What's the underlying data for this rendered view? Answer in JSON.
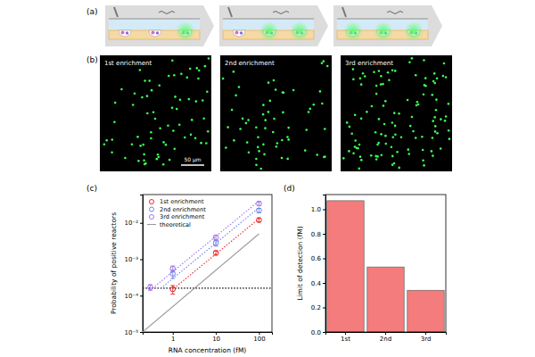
{
  "panels": {
    "a": {
      "panel_label": "(a)"
    },
    "b": {
      "panel_label": "(b)",
      "images": [
        {
          "title": "1st enrichment",
          "spots": 70
        },
        {
          "title": "2nd enrichment",
          "spots": 60
        },
        {
          "title": "3rd enrichment",
          "spots": 110
        }
      ],
      "scale_bar": "50 μm"
    }
  },
  "chart_data": [
    {
      "type": "scatter",
      "panel_label": "(c)",
      "x_label": "RNA concentration (fM)",
      "y_label": "Probability of positive reactors",
      "log": true,
      "xlim": [
        0.2,
        200
      ],
      "ylim": [
        1e-05,
        0.06
      ],
      "xticks": [
        1,
        10,
        100
      ],
      "yticks": [
        {
          "value": 1e-05,
          "label": "10⁻⁵"
        },
        {
          "value": 0.0001,
          "label": "10⁻⁴"
        },
        {
          "value": 0.001,
          "label": "10⁻³"
        },
        {
          "value": 0.01,
          "label": "10⁻²"
        }
      ],
      "legend": "top-left",
      "threshold": {
        "value": 0.00016,
        "color": "#000000",
        "line_style": "dotted"
      },
      "series": [
        {
          "name": "1st enrichment",
          "color": "#e8262a",
          "marker": "circle",
          "x": [
            1,
            10,
            100
          ],
          "values": [
            0.00015,
            0.0015,
            0.012
          ],
          "errors": [
            4e-05,
            0.0002,
            0.0015
          ],
          "fit": {
            "x": [
              1.07,
              100
            ],
            "values": [
              0.00016,
              0.013
            ],
            "line_style": "dotted"
          }
        },
        {
          "name": "2nd enrichment",
          "color": "#6a84e6",
          "marker": "circle",
          "x": [
            1,
            10,
            100
          ],
          "values": [
            0.0004,
            0.0028,
            0.022
          ],
          "errors": [
            0.0001,
            0.0005,
            0.003
          ],
          "fit": {
            "x": [
              0.53,
              100
            ],
            "values": [
              0.00016,
              0.026
            ],
            "line_style": "dotted"
          }
        },
        {
          "name": "3rd enrichment",
          "color": "#a274e6",
          "marker": "circle",
          "x": [
            0.3,
            1,
            10,
            100
          ],
          "values": [
            0.00017,
            0.00055,
            0.004,
            0.034
          ],
          "errors": [
            3e-05,
            0.0001,
            0.0006,
            0.004
          ],
          "fit": {
            "x": [
              0.34,
              100
            ],
            "values": [
              0.00016,
              0.04
            ],
            "line_style": "dotted"
          }
        },
        {
          "name": "theoretical",
          "type": "line",
          "color": "#999999",
          "line_style": "solid",
          "x": [
            0.2,
            100
          ],
          "values": [
            1e-05,
            0.005
          ]
        }
      ]
    },
    {
      "type": "bar",
      "panel_label": "(d)",
      "y_label": "Limit of detection (fM)",
      "categories": [
        "1st",
        "2nd",
        "3rd"
      ],
      "values": [
        1.07,
        0.53,
        0.34
      ],
      "color": "#f47c7c",
      "ylim": [
        0,
        1.12
      ],
      "yticks": [
        {
          "value": 0,
          "label": "0.0"
        },
        0.2,
        0.4,
        0.6,
        0.8,
        {
          "value": 1,
          "label": "1.0"
        }
      ]
    }
  ]
}
